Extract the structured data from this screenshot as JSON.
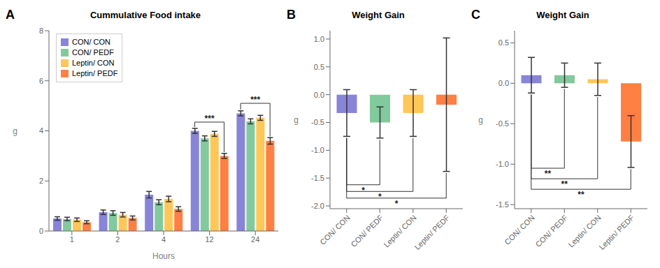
{
  "chart_data": [
    {
      "type": "bar",
      "panel_label": "A",
      "title": "Cummulative Food intake",
      "xlabel": "Hours",
      "ylabel": "g",
      "categories": [
        "1",
        "2",
        "4",
        "12",
        "24"
      ],
      "series": [
        {
          "name": "CON/ CON",
          "color": "#8884d8",
          "values": [
            0.5,
            0.75,
            1.45,
            4.0,
            4.7
          ],
          "errors": [
            0.07,
            0.09,
            0.13,
            0.1,
            0.1
          ]
        },
        {
          "name": "CON/ PEDF",
          "color": "#82ca9d",
          "values": [
            0.48,
            0.72,
            1.15,
            3.7,
            4.38
          ],
          "errors": [
            0.07,
            0.09,
            0.1,
            0.1,
            0.1
          ]
        },
        {
          "name": "Leptin/ CON",
          "color": "#ffc658",
          "values": [
            0.45,
            0.65,
            1.28,
            3.88,
            4.52
          ],
          "errors": [
            0.07,
            0.09,
            0.11,
            0.1,
            0.1
          ]
        },
        {
          "name": "Leptin/ PEDF",
          "color": "#ff8042",
          "values": [
            0.35,
            0.52,
            0.88,
            3.0,
            3.6
          ],
          "errors": [
            0.06,
            0.08,
            0.09,
            0.1,
            0.13
          ]
        }
      ],
      "ylim": [
        0,
        8
      ],
      "yticks": [
        0,
        2,
        4,
        6,
        8
      ],
      "grid": false,
      "legend": "upper left",
      "annotations": [
        {
          "text": "***",
          "category": "12",
          "series": [
            "CON/ CON",
            "Leptin/ PEDF"
          ],
          "y": 4.35,
          "y_text": 4.37,
          "y_start": [
            4.15,
            3.15
          ]
        },
        {
          "text": "***",
          "category": "24",
          "series": [
            "CON/ CON",
            "Leptin/ PEDF"
          ],
          "y": 5.1,
          "y_text": 5.12,
          "y_start": [
            4.85,
            3.78
          ]
        }
      ]
    },
    {
      "type": "bar",
      "panel_label": "B",
      "title": "Weight Gain",
      "ylabel": "g",
      "categories": [
        "CON/ CON",
        "CON/ PEDF",
        "Leptin/ CON",
        "Leptin/ PEDF"
      ],
      "values": [
        -0.33,
        -0.5,
        -0.33,
        -0.18
      ],
      "errors": [
        0.42,
        0.28,
        0.42,
        1.2
      ],
      "colors": [
        "#8884d8",
        "#82ca9d",
        "#ffc658",
        "#ff8042"
      ],
      "ylim": [
        -2.05,
        1.15
      ],
      "yticks": [
        {
          "value": 1,
          "label": "1.0"
        },
        0.5,
        {
          "value": 0,
          "label": "0.0"
        },
        -0.5,
        {
          "value": -1,
          "label": "-1.0"
        },
        -1.5,
        {
          "value": -2,
          "label": "-2.0"
        }
      ],
      "grid": false,
      "annotations": [
        {
          "text": "*",
          "categories": [
            "CON/ CON",
            "CON/ PEDF"
          ],
          "y": -1.62,
          "y_text": -1.66,
          "y_start": [
            -0.78,
            -0.81
          ]
        },
        {
          "text": "*",
          "categories": [
            "CON/ CON",
            "Leptin/ CON"
          ],
          "y": -1.74,
          "y_text": -1.78,
          "y_start": [
            -0.78,
            -0.78
          ]
        },
        {
          "text": "*",
          "categories": [
            "CON/ CON",
            "Leptin/ PEDF"
          ],
          "y": -1.86,
          "y_text": -1.9,
          "y_start": [
            -0.78,
            -1.41
          ]
        }
      ]
    },
    {
      "type": "bar",
      "panel_label": "C",
      "title": "Weight Gain",
      "ylabel": "g",
      "categories": [
        "CON/ CON",
        "CON/ PEDF",
        "Leptin/ CON",
        "Leptin/ PEDF"
      ],
      "values": [
        0.1,
        0.1,
        0.05,
        -0.72
      ],
      "errors": [
        0.22,
        0.15,
        0.2,
        0.32
      ],
      "colors": [
        "#8884d8",
        "#82ca9d",
        "#ffc658",
        "#ff8042"
      ],
      "ylim": [
        -1.55,
        0.65
      ],
      "yticks": [
        0.5,
        {
          "value": 0,
          "label": "0.0"
        },
        -0.5,
        {
          "value": -1,
          "label": "-1.0"
        },
        -1.5
      ],
      "grid": false,
      "annotations": [
        {
          "text": "**",
          "categories": [
            "CON/ CON",
            "CON/ PEDF"
          ],
          "y": -1.05,
          "y_text": -1.08,
          "y_start": [
            -0.14,
            -0.07
          ]
        },
        {
          "text": "**",
          "categories": [
            "CON/ CON",
            "Leptin/ CON"
          ],
          "y": -1.18,
          "y_text": -1.21,
          "y_start": [
            -0.14,
            -0.17
          ]
        },
        {
          "text": "**",
          "categories": [
            "CON/ CON",
            "Leptin/ PEDF"
          ],
          "y": -1.31,
          "y_text": -1.34,
          "y_start": [
            -0.14,
            -1.06
          ]
        }
      ]
    }
  ]
}
